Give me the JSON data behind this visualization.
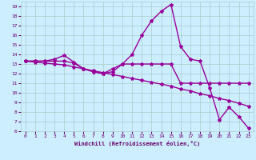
{
  "xlabel": "Windchill (Refroidissement éolien,°C)",
  "xlim": [
    -0.5,
    23.5
  ],
  "ylim": [
    6,
    19.5
  ],
  "xticks": [
    0,
    1,
    2,
    3,
    4,
    5,
    6,
    7,
    8,
    9,
    10,
    11,
    12,
    13,
    14,
    15,
    16,
    17,
    18,
    19,
    20,
    21,
    22,
    23
  ],
  "yticks": [
    6,
    7,
    8,
    9,
    10,
    11,
    12,
    13,
    14,
    15,
    16,
    17,
    18,
    19
  ],
  "bg_color": "#cceeff",
  "grid_color": "#aacccc",
  "line_color": "#990099",
  "line1_x": [
    0,
    1,
    2,
    3,
    4,
    5,
    6,
    7,
    8,
    9,
    10,
    11,
    12,
    13,
    14,
    15,
    16,
    17,
    18,
    19,
    20,
    21,
    22,
    23
  ],
  "line1_y": [
    13.3,
    13.3,
    13.3,
    13.5,
    13.9,
    13.2,
    12.5,
    12.2,
    12.0,
    12.2,
    13.0,
    13.0,
    13.0,
    13.0,
    13.0,
    13.0,
    11.0,
    11.0,
    11.0,
    11.0,
    11.0,
    11.0,
    11.0,
    11.0
  ],
  "line2_x": [
    0,
    1,
    2,
    3,
    4,
    5,
    6,
    7,
    8,
    9,
    10,
    11,
    12,
    13,
    14,
    15,
    16,
    17,
    18,
    19,
    20,
    21,
    22,
    23
  ],
  "line2_y": [
    13.3,
    13.3,
    13.3,
    13.3,
    13.3,
    13.1,
    12.5,
    12.2,
    12.0,
    12.5,
    13.0,
    14.0,
    16.0,
    17.5,
    18.5,
    19.2,
    14.8,
    13.5,
    13.3,
    10.5,
    7.2,
    8.5,
    7.5,
    6.3
  ],
  "line3_x": [
    0,
    1,
    2,
    3,
    4,
    5,
    6,
    7,
    8,
    9,
    10,
    11,
    12,
    13,
    14,
    15,
    16,
    17,
    18,
    19,
    20,
    21,
    22,
    23
  ],
  "line3_y": [
    13.3,
    13.2,
    13.1,
    13.0,
    12.9,
    12.7,
    12.5,
    12.3,
    12.1,
    11.9,
    11.7,
    11.5,
    11.3,
    11.1,
    10.9,
    10.7,
    10.4,
    10.2,
    9.9,
    9.7,
    9.4,
    9.2,
    8.9,
    8.6
  ],
  "marker": "*",
  "markersize": 3,
  "linewidth": 1.0
}
